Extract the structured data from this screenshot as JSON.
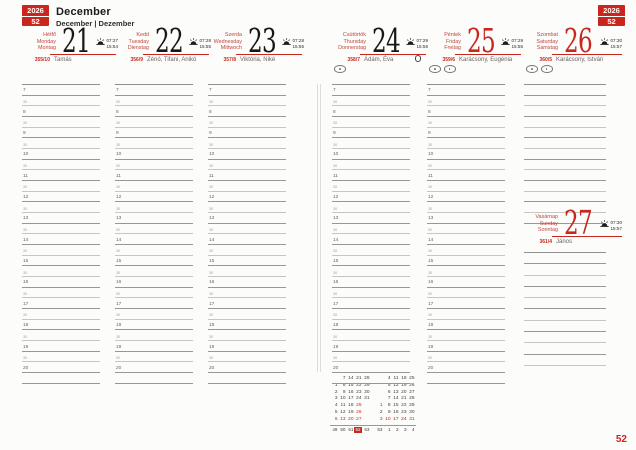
{
  "meta": {
    "year": "2026",
    "week": "52",
    "page_number": "52"
  },
  "header": {
    "month_primary": "December",
    "month_secondary": "December | Dezember"
  },
  "colors": {
    "accent_red": "#c9271e"
  },
  "days": [
    {
      "key": "monday",
      "names": [
        "Hétfő",
        "Monday",
        "Montag"
      ],
      "date": "21",
      "red": false,
      "sunrise": "07:27",
      "sunset": "15:54",
      "day_of_year": "355/10",
      "name_days": "Tamás",
      "moon": false,
      "restriction_icons": 0
    },
    {
      "key": "tuesday",
      "names": [
        "Kedd",
        "Tuesday",
        "Dienstag"
      ],
      "date": "22",
      "red": false,
      "sunrise": "07:28",
      "sunset": "15:55",
      "day_of_year": "356/9",
      "name_days": "Zénó, Tifani, Anikó",
      "moon": false,
      "restriction_icons": 0
    },
    {
      "key": "wednesday",
      "names": [
        "Szerda",
        "Wednesday",
        "Mittwoch"
      ],
      "date": "23",
      "red": false,
      "sunrise": "07:28",
      "sunset": "15:55",
      "day_of_year": "357/8",
      "name_days": "Viktória, Niké",
      "moon": false,
      "restriction_icons": 0
    },
    {
      "key": "thursday",
      "names": [
        "Csütörtök",
        "Thursday",
        "Donnerstag"
      ],
      "date": "24",
      "red": false,
      "sunrise": "07:29",
      "sunset": "15:56",
      "day_of_year": "358/7",
      "name_days": "Ádám, Éva",
      "moon": true,
      "restriction_icons": 1
    },
    {
      "key": "friday",
      "names": [
        "Péntek",
        "Friday",
        "Freitag"
      ],
      "date": "25",
      "red": true,
      "sunrise": "07:29",
      "sunset": "15:56",
      "day_of_year": "359/6",
      "name_days": "Karácsony, Eugénia",
      "moon": false,
      "restriction_icons": 2
    },
    {
      "key": "saturday",
      "names": [
        "Szombat",
        "Saturday",
        "Samstag"
      ],
      "date": "26",
      "red": true,
      "sunrise": "07:30",
      "sunset": "15:57",
      "day_of_year": "360/5",
      "name_days": "Karácsony, István",
      "moon": false,
      "restriction_icons": 2
    },
    {
      "key": "sunday",
      "names": [
        "Vasárnap",
        "Sunday",
        "Sonntag"
      ],
      "date": "27",
      "red": true,
      "sunrise": "07:30",
      "sunset": "15:57",
      "day_of_year": "361/4",
      "name_days": "János",
      "moon": false,
      "restriction_icons": 0
    }
  ],
  "schedule": {
    "hours": [
      "7",
      "8",
      "9",
      "10",
      "11",
      "12",
      "13",
      "14",
      "15",
      "16",
      "17",
      "18",
      "19",
      "20"
    ],
    "half_label": "30"
  },
  "mini_calendar": {
    "months": [
      {
        "columns": [
          [
            "",
            "1",
            "2",
            "3",
            "4",
            "5",
            "6"
          ],
          [
            "7",
            "8",
            "9",
            "10",
            "11",
            "12",
            "13"
          ],
          [
            "14",
            "15",
            "16",
            "17",
            "18",
            "19",
            "20"
          ],
          [
            "21",
            "22",
            "23",
            "24",
            "25",
            "26",
            "27"
          ],
          [
            "28",
            "29",
            "30",
            "31",
            "",
            "",
            ""
          ]
        ],
        "red_dates": [
          "6",
          "13",
          "20",
          "25",
          "26",
          "27"
        ]
      },
      {
        "columns": [
          [
            "",
            "",
            "",
            "",
            "1",
            "2",
            "3"
          ],
          [
            "4",
            "5",
            "6",
            "7",
            "8",
            "9",
            "10"
          ],
          [
            "11",
            "12",
            "13",
            "14",
            "15",
            "16",
            "17"
          ],
          [
            "18",
            "19",
            "20",
            "21",
            "22",
            "23",
            "24"
          ],
          [
            "25",
            "26",
            "27",
            "28",
            "29",
            "30",
            "31"
          ]
        ],
        "red_dates": [
          "1",
          "3",
          "10",
          "17",
          "24",
          "31"
        ]
      }
    ],
    "week_numbers": [
      "49",
      "50",
      "51",
      "52",
      "53",
      "53",
      "1",
      "2",
      "3",
      "4"
    ],
    "current_week": "52"
  }
}
